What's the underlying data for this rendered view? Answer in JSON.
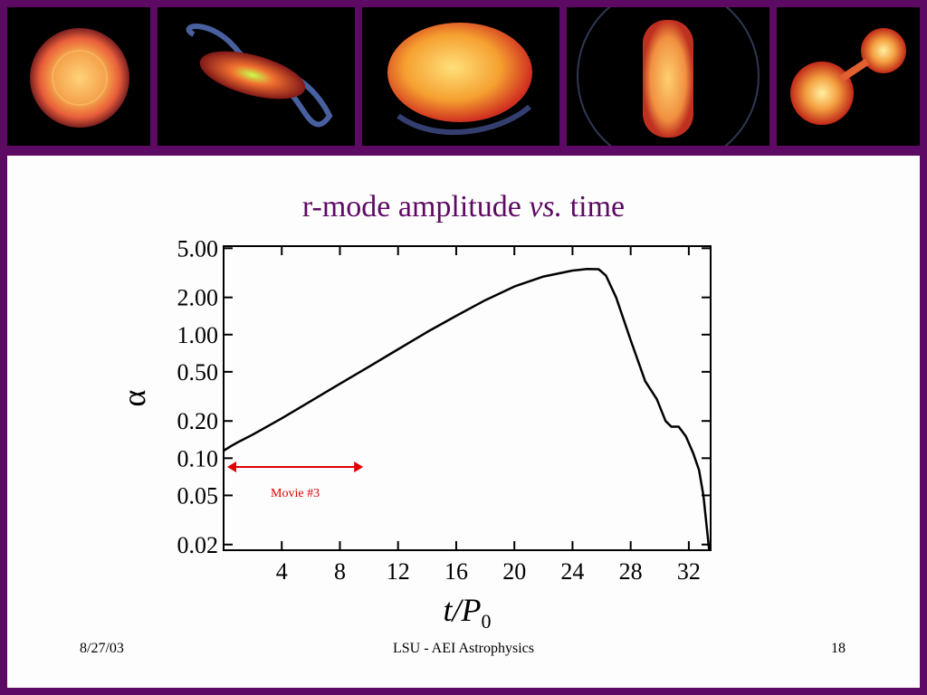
{
  "title": {
    "main": "r-mode amplitude ",
    "italic": "vs.",
    "rest": " time"
  },
  "footer": {
    "date": "8/27/03",
    "center": "LSU - AEI Astrophysics",
    "page": "18"
  },
  "banner_images": [
    {
      "name": "star-image-1",
      "icon": "round-star"
    },
    {
      "name": "star-image-2",
      "icon": "spiral-star"
    },
    {
      "name": "star-image-3",
      "icon": "deformed-star"
    },
    {
      "name": "star-image-4",
      "icon": "elongated-star"
    },
    {
      "name": "star-image-5",
      "icon": "binary-star"
    }
  ],
  "colors": {
    "frame": "#5d0a64",
    "title": "#5d0a64",
    "curve": "#000000",
    "annotation": "#e00000"
  },
  "chart_data": {
    "type": "line",
    "title": "r-mode amplitude vs. time",
    "xlabel": "t/P0",
    "ylabel": "α",
    "xlim": [
      0,
      33.5
    ],
    "ylim": [
      0.018,
      5.2
    ],
    "yscale": "log",
    "xticks": [
      4,
      8,
      12,
      16,
      20,
      24,
      28,
      32
    ],
    "xtick_labels": [
      "4",
      "8",
      "12",
      "16",
      "20",
      "24",
      "28",
      "32"
    ],
    "yticks": [
      0.02,
      0.05,
      0.1,
      0.2,
      0.5,
      1.0,
      2.0,
      5.0
    ],
    "ytick_labels": [
      "0.02",
      "0.05",
      "0.10",
      "0.20",
      "0.50",
      "1.00",
      "2.00",
      "5.00"
    ],
    "series": [
      {
        "x": [
          0,
          0.5,
          1,
          2,
          4,
          6,
          8,
          10,
          12,
          14,
          16,
          18,
          20,
          22,
          24,
          25,
          25.8,
          26.3,
          27,
          28,
          29,
          29.8,
          30.4,
          30.8,
          31.3,
          31.8,
          32.3,
          32.7,
          33.0,
          33.2,
          33.4
        ],
        "y": [
          0.115,
          0.125,
          0.135,
          0.155,
          0.21,
          0.29,
          0.4,
          0.55,
          0.76,
          1.05,
          1.42,
          1.9,
          2.45,
          2.95,
          3.3,
          3.4,
          3.38,
          3.0,
          2.0,
          0.9,
          0.42,
          0.3,
          0.2,
          0.18,
          0.18,
          0.15,
          0.11,
          0.08,
          0.05,
          0.03,
          0.018
        ]
      }
    ],
    "annotation": {
      "label": "Movie #3",
      "x_start": 0,
      "x_end": 9.6,
      "y": 0.085
    }
  }
}
